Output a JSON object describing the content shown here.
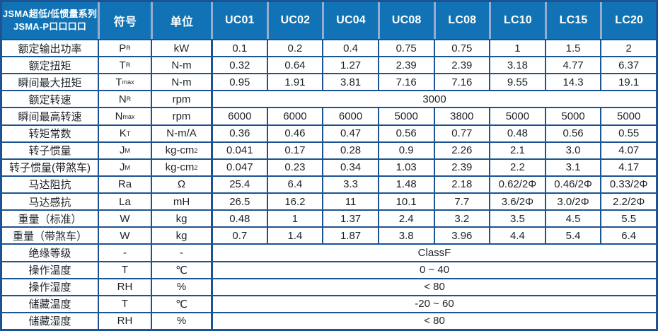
{
  "colors": {
    "header_bg": "#1173b5",
    "header_divider": "#93accf",
    "grid_border": "#1b5393",
    "header_text": "#ffffff",
    "body_text": "#1f2328"
  },
  "header": {
    "title_line1": "JSMA超低/低惯量系列",
    "title_line2": "JSMA-P口口口口",
    "symbol_col": "符号",
    "unit_col": "单位",
    "models": [
      "UC01",
      "UC02",
      "UC04",
      "UC08",
      "LC08",
      "LC10",
      "LC15",
      "LC20"
    ]
  },
  "rows": [
    {
      "label": "额定输出功率",
      "sym": "P",
      "sub": "R",
      "unit": "kW",
      "values": [
        "0.1",
        "0.2",
        "0.4",
        "0.75",
        "0.75",
        "1",
        "1.5",
        "2"
      ]
    },
    {
      "label": "额定扭矩",
      "sym": "T",
      "sub": "R",
      "unit": "N-m",
      "values": [
        "0.32",
        "0.64",
        "1.27",
        "2.39",
        "2.39",
        "3.18",
        "4.77",
        "6.37"
      ]
    },
    {
      "label": "瞬间最大扭矩",
      "sym": "T",
      "sub": "max",
      "unit": "N-m",
      "values": [
        "0.95",
        "1.91",
        "3.81",
        "7.16",
        "7.16",
        "9.55",
        "14.3",
        "19.1"
      ]
    },
    {
      "label": "额定转速",
      "sym": "N",
      "sub": "R",
      "unit": "rpm",
      "merged": "3000"
    },
    {
      "label": "瞬间最高转速",
      "sym": "N",
      "sub": "max",
      "unit": "rpm",
      "values": [
        "6000",
        "6000",
        "6000",
        "5000",
        "3800",
        "5000",
        "5000",
        "5000"
      ]
    },
    {
      "label": "转矩常数",
      "sym": "K",
      "sub": "T",
      "unit": "N-m/A",
      "values": [
        "0.36",
        "0.46",
        "0.47",
        "0.56",
        "0.77",
        "0.48",
        "0.56",
        "0.55"
      ]
    },
    {
      "label": "转子惯量",
      "sym": "J",
      "sub": "M",
      "unit": "kg-cm",
      "unit_sup": "2",
      "values": [
        "0.041",
        "0.17",
        "0.28",
        "0.9",
        "2.26",
        "2.1",
        "3.0",
        "4.07"
      ]
    },
    {
      "label": "转子惯量(带煞车)",
      "sym": "J",
      "sub": "M",
      "unit": "kg-cm",
      "unit_sup": "2",
      "values": [
        "0.047",
        "0.23",
        "0.34",
        "1.03",
        "2.39",
        "2.2",
        "3.1",
        "4.17"
      ]
    },
    {
      "label": "马达阻抗",
      "sym": "Ra",
      "sub": "",
      "unit": "Ω",
      "values": [
        "25.4",
        "6.4",
        "3.3",
        "1.48",
        "2.18",
        "0.62/2Φ",
        "0.46/2Φ",
        "0.33/2Φ"
      ]
    },
    {
      "label": "马达感抗",
      "sym": "La",
      "sub": "",
      "unit": "mH",
      "values": [
        "26.5",
        "16.2",
        "11",
        "10.1",
        "7.7",
        "3.6/2Φ",
        "3.0/2Φ",
        "2.2/2Φ"
      ]
    },
    {
      "label": "重量（标准）",
      "sym": "W",
      "sub": "",
      "unit": "kg",
      "values": [
        "0.48",
        "1",
        "1.37",
        "2.4",
        "3.2",
        "3.5",
        "4.5",
        "5.5"
      ]
    },
    {
      "label": "重量（带煞车）",
      "sym": "W",
      "sub": "",
      "unit": "kg",
      "values": [
        "0.7",
        "1.4",
        "1.87",
        "3.8",
        "3.96",
        "4.4",
        "5.4",
        "6.4"
      ]
    },
    {
      "label": "绝缘等级",
      "sym": "-",
      "sub": "",
      "unit": "-",
      "merged": "ClassF"
    },
    {
      "label": "操作温度",
      "sym": "T",
      "sub": "",
      "unit": "℃",
      "merged": "0 ~ 40"
    },
    {
      "label": "操作湿度",
      "sym": "RH",
      "sub": "",
      "unit": "%",
      "merged": "< 80"
    },
    {
      "label": "储藏温度",
      "sym": "T",
      "sub": "",
      "unit": "℃",
      "merged": "-20 ~ 60"
    },
    {
      "label": "储藏湿度",
      "sym": "RH",
      "sub": "",
      "unit": "%",
      "merged": "< 80"
    }
  ]
}
